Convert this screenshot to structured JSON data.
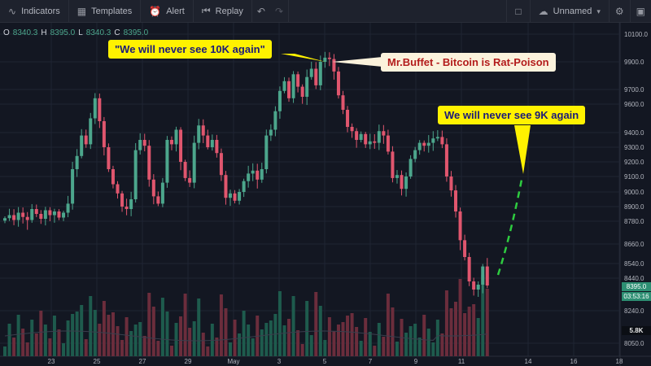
{
  "toolbar": {
    "indicators": "Indicators",
    "templates": "Templates",
    "alert": "Alert",
    "replay": "Replay",
    "layout_name": "Unnamed"
  },
  "legend": {
    "o_label": "O",
    "o_value": "8340.3",
    "h_label": "H",
    "h_value": "8395.0",
    "l_label": "L",
    "l_value": "8340.3",
    "c_label": "C",
    "c_value": "8395.0"
  },
  "tags": {
    "last_price": "8395.0",
    "countdown": "03:53:16",
    "volume": "5.8K"
  },
  "annotations": {
    "quote_10k": "\"We will never see 10K again\"",
    "buffett": "Mr.Buffet - Bitcoin is Rat-Poison",
    "quote_9k": "We will never see 9K again"
  },
  "colors": {
    "background": "#131722",
    "up_candle": "#4ca68c",
    "down_candle": "#e0566e",
    "volume_up": "#1e5b4d",
    "volume_down": "#6b2d3c",
    "annotation_yellow": "#fff200",
    "arrow_green": "#2ecc40"
  },
  "chart_data": {
    "type": "candlestick",
    "y_ticks": [
      10100,
      9900,
      9700,
      9600,
      9400,
      9300,
      9200,
      9100,
      9000,
      8900,
      8780,
      8660,
      8540,
      8440,
      8240,
      8050
    ],
    "y_tick_labels": [
      "10100.0",
      "9900.0",
      "9700.0",
      "9600.0",
      "9400.0",
      "9300.0",
      "9200.0",
      "9100.0",
      "9000.0",
      "8900.0",
      "8780.0",
      "8660.0",
      "8540.0",
      "8440.0",
      "8240.0",
      "8050.0"
    ],
    "x_tick_labels": [
      "23",
      "25",
      "27",
      "29",
      "May",
      "3",
      "5",
      "7",
      "9",
      "11",
      "14",
      "16",
      "18"
    ],
    "candle_closes": [
      8805,
      8830,
      8790,
      8850,
      8815,
      8790,
      8880,
      8840,
      8800,
      8870,
      8830,
      8860,
      8810,
      8850,
      8920,
      9150,
      9240,
      9380,
      9320,
      9500,
      9640,
      9480,
      9300,
      9150,
      9050,
      8990,
      8900,
      8880,
      8950,
      9280,
      9350,
      9310,
      9080,
      8970,
      8920,
      9060,
      9350,
      9320,
      9420,
      9200,
      9090,
      9060,
      9330,
      9450,
      9380,
      9300,
      9350,
      9260,
      9110,
      8960,
      8990,
      8940,
      9000,
      9070,
      9120,
      9140,
      9080,
      9150,
      9380,
      9420,
      9550,
      9690,
      9760,
      9640,
      9810,
      9720,
      9650,
      9790,
      9850,
      9730,
      9900,
      9930,
      9920,
      9830,
      9660,
      9560,
      9440,
      9410,
      9350,
      9390,
      9320,
      9340,
      9330,
      9410,
      9380,
      9270,
      9090,
      9110,
      9020,
      9100,
      9220,
      9280,
      9330,
      9310,
      9330,
      9360,
      9370,
      9320,
      9100,
      9010,
      8860,
      8680,
      8580,
      8420,
      8370,
      8400,
      8520,
      8395
    ]
  }
}
